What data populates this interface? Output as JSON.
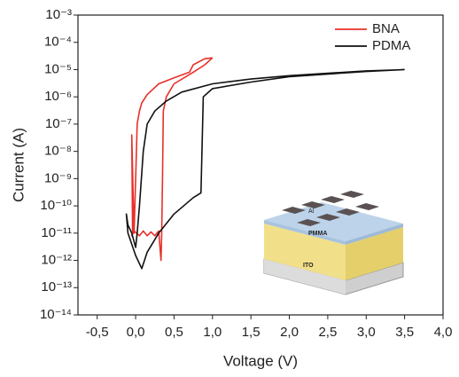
{
  "chart_data": {
    "type": "line",
    "x_label": "Voltage (V)",
    "y_label": "Current (A)",
    "xlim": [
      -0.75,
      4.0
    ],
    "xticks": [
      {
        "value": -0.5,
        "label": "-0,5"
      },
      {
        "value": 0,
        "label": "0,0"
      },
      {
        "value": 0.5,
        "label": "0,5"
      },
      {
        "value": 1,
        "label": "1,0"
      },
      {
        "value": 1.5,
        "label": "1,5"
      },
      {
        "value": 2,
        "label": "2,0"
      },
      {
        "value": 2.5,
        "label": "2,5"
      },
      {
        "value": 3,
        "label": "3,0"
      },
      {
        "value": 3.5,
        "label": "3,5"
      },
      {
        "value": 4,
        "label": "4,0"
      }
    ],
    "yscale": "log",
    "ylim": [
      1e-14,
      0.001
    ],
    "yticks": [
      {
        "value": 0.001,
        "label": "10⁻³"
      },
      {
        "value": 0.0001,
        "label": "10⁻⁴"
      },
      {
        "value": 1e-05,
        "label": "10⁻⁵"
      },
      {
        "value": 1e-06,
        "label": "10⁻⁶"
      },
      {
        "value": 1e-07,
        "label": "10⁻⁷"
      },
      {
        "value": 1e-08,
        "label": "10⁻⁸"
      },
      {
        "value": 1e-09,
        "label": "10⁻⁹"
      },
      {
        "value": 1e-10,
        "label": "10⁻¹⁰"
      },
      {
        "value": 1e-11,
        "label": "10⁻¹¹"
      },
      {
        "value": 1e-12,
        "label": "10⁻¹²"
      },
      {
        "value": 1e-13,
        "label": "10⁻¹³"
      },
      {
        "value": 1e-14,
        "label": "10⁻¹⁴"
      }
    ],
    "legend_position": "upper right",
    "series": [
      {
        "name": "BNA",
        "color": "#e8302a",
        "x": [
          1.0,
          0.9,
          0.75,
          0.7,
          0.5,
          0.3,
          0.15,
          0.08,
          0.05,
          0.02,
          0.0,
          -0.02,
          -0.05,
          -0.04,
          -0.05,
          -0.02,
          0.05,
          0.1,
          0.15,
          0.2,
          0.25,
          0.3,
          0.33,
          0.34,
          0.35,
          0.36,
          0.4,
          0.5,
          0.75,
          0.9,
          1.0
        ],
        "values": [
          2.7e-05,
          2.5e-05,
          1.5e-05,
          8e-06,
          5e-06,
          3e-06,
          1.2e-06,
          6e-07,
          3e-07,
          1e-07,
          1e-09,
          1e-11,
          4e-08,
          1e-11,
          8e-12,
          1.2e-11,
          8e-12,
          1.2e-11,
          8e-12,
          1.1e-11,
          8e-12,
          1.2e-11,
          1e-12,
          1e-11,
          1e-09,
          3e-07,
          1e-06,
          3e-06,
          8e-06,
          1.5e-05,
          2.7e-05
        ]
      },
      {
        "name": "PDMA",
        "color": "#111111",
        "x": [
          3.5,
          3.0,
          2.0,
          1.5,
          1.0,
          0.6,
          0.4,
          0.25,
          0.15,
          0.1,
          0.05,
          0.02,
          0.0,
          -0.05,
          -0.1,
          -0.12,
          -0.1,
          0.0,
          0.08,
          0.15,
          0.3,
          0.5,
          0.75,
          0.85,
          0.88,
          1.0,
          1.5,
          2.0,
          3.0,
          3.5
        ],
        "values": [
          1e-05,
          9e-06,
          6e-06,
          4.5e-06,
          3e-06,
          1.5e-06,
          7e-07,
          3e-07,
          1e-07,
          1e-08,
          1e-10,
          1e-11,
          3e-12,
          1e-11,
          2e-11,
          5e-11,
          1e-11,
          1.5e-12,
          5e-13,
          2e-12,
          1e-11,
          5e-11,
          2e-10,
          3e-10,
          1e-06,
          2e-06,
          3.5e-06,
          5.5e-06,
          8.5e-06,
          1e-05
        ]
      }
    ],
    "inset_labels": {
      "electrode": "Al",
      "layer": "PMMA",
      "substrate": "ITO"
    }
  }
}
